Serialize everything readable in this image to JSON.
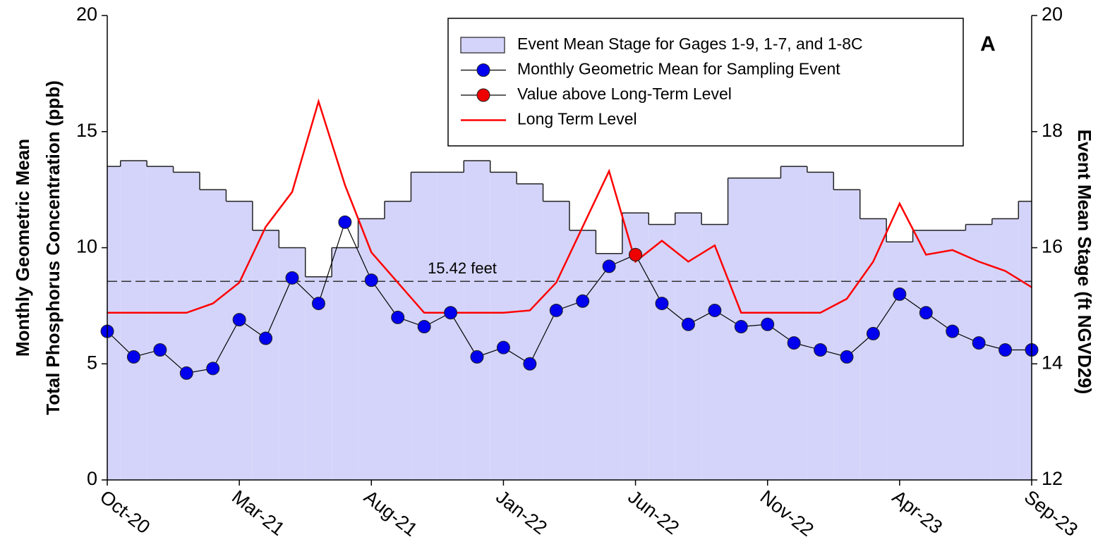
{
  "chart_data": {
    "type": "combo",
    "y_label_lines": [
      "Monthly Geometric Mean",
      "Total Phosphorus Concentration (ppb)"
    ],
    "y2_label": "Event Mean Stage (ft NGVD29)",
    "panel_label": "A",
    "categories": [
      "Oct-20",
      null,
      null,
      null,
      null,
      "Mar-21",
      null,
      null,
      null,
      null,
      "Aug-21",
      null,
      null,
      null,
      null,
      "Jan-22",
      null,
      null,
      null,
      null,
      "Jun-22",
      null,
      null,
      null,
      null,
      "Nov-22",
      null,
      null,
      null,
      null,
      "Apr-23",
      null,
      null,
      null,
      null,
      "Sep-23"
    ],
    "ylim": [
      0,
      20
    ],
    "yticks": [
      0,
      5,
      10,
      15,
      20
    ],
    "y2lim": [
      12,
      20
    ],
    "y2ticks": [
      12,
      14,
      16,
      18,
      20
    ],
    "reference_line": {
      "value": 15.42,
      "label": "15.42 feet",
      "axis": "y2",
      "color": "#333333"
    },
    "series": [
      {
        "name": "Event Mean Stage for Gages 1-9, 1-7, and 1-8C",
        "type": "step-area",
        "axis": "y2",
        "color": "#d4d4fa",
        "values": [
          17.4,
          17.5,
          17.4,
          17.3,
          17.0,
          16.8,
          16.3,
          16.0,
          15.5,
          16.0,
          16.5,
          16.8,
          17.3,
          17.3,
          17.5,
          17.3,
          17.1,
          16.8,
          16.3,
          15.9,
          16.6,
          16.4,
          16.6,
          16.4,
          17.2,
          17.2,
          17.4,
          17.3,
          17.0,
          16.5,
          16.1,
          16.3,
          16.3,
          16.4,
          16.5,
          16.8
        ]
      },
      {
        "name": "Long Term Level",
        "type": "line",
        "color": "#ff0000",
        "values": [
          7.2,
          7.2,
          7.2,
          7.2,
          7.6,
          8.5,
          10.9,
          12.4,
          16.3,
          12.7,
          9.8,
          8.5,
          7.2,
          7.2,
          7.2,
          7.2,
          7.3,
          8.5,
          10.9,
          13.3,
          9.4,
          10.3,
          9.4,
          10.1,
          7.2,
          7.2,
          7.2,
          7.2,
          7.8,
          9.4,
          11.9,
          9.7,
          9.9,
          9.4,
          9.0,
          8.3
        ]
      },
      {
        "name": "Monthly Geometric Mean for Sampling Event",
        "type": "line-marker",
        "color": "#0000ee",
        "values": [
          6.4,
          5.3,
          5.6,
          4.6,
          4.8,
          6.9,
          6.1,
          8.7,
          7.6,
          11.1,
          8.6,
          7.0,
          6.6,
          7.2,
          5.3,
          5.7,
          5.0,
          7.3,
          7.7,
          9.2,
          9.7,
          7.6,
          6.7,
          7.3,
          6.6,
          6.7,
          5.9,
          5.6,
          5.3,
          6.3,
          8.0,
          7.2,
          6.4,
          5.9,
          5.6,
          5.6
        ]
      },
      {
        "name": "Value above Long-Term Level",
        "type": "marker",
        "color": "#ee0000",
        "values": [
          null,
          null,
          null,
          null,
          null,
          null,
          null,
          null,
          null,
          null,
          null,
          null,
          null,
          null,
          null,
          null,
          null,
          null,
          null,
          null,
          9.7,
          null,
          null,
          null,
          null,
          null,
          null,
          null,
          null,
          null,
          null,
          null,
          null,
          null,
          null,
          null
        ]
      }
    ],
    "legend_order": [
      0,
      2,
      3,
      1
    ]
  }
}
